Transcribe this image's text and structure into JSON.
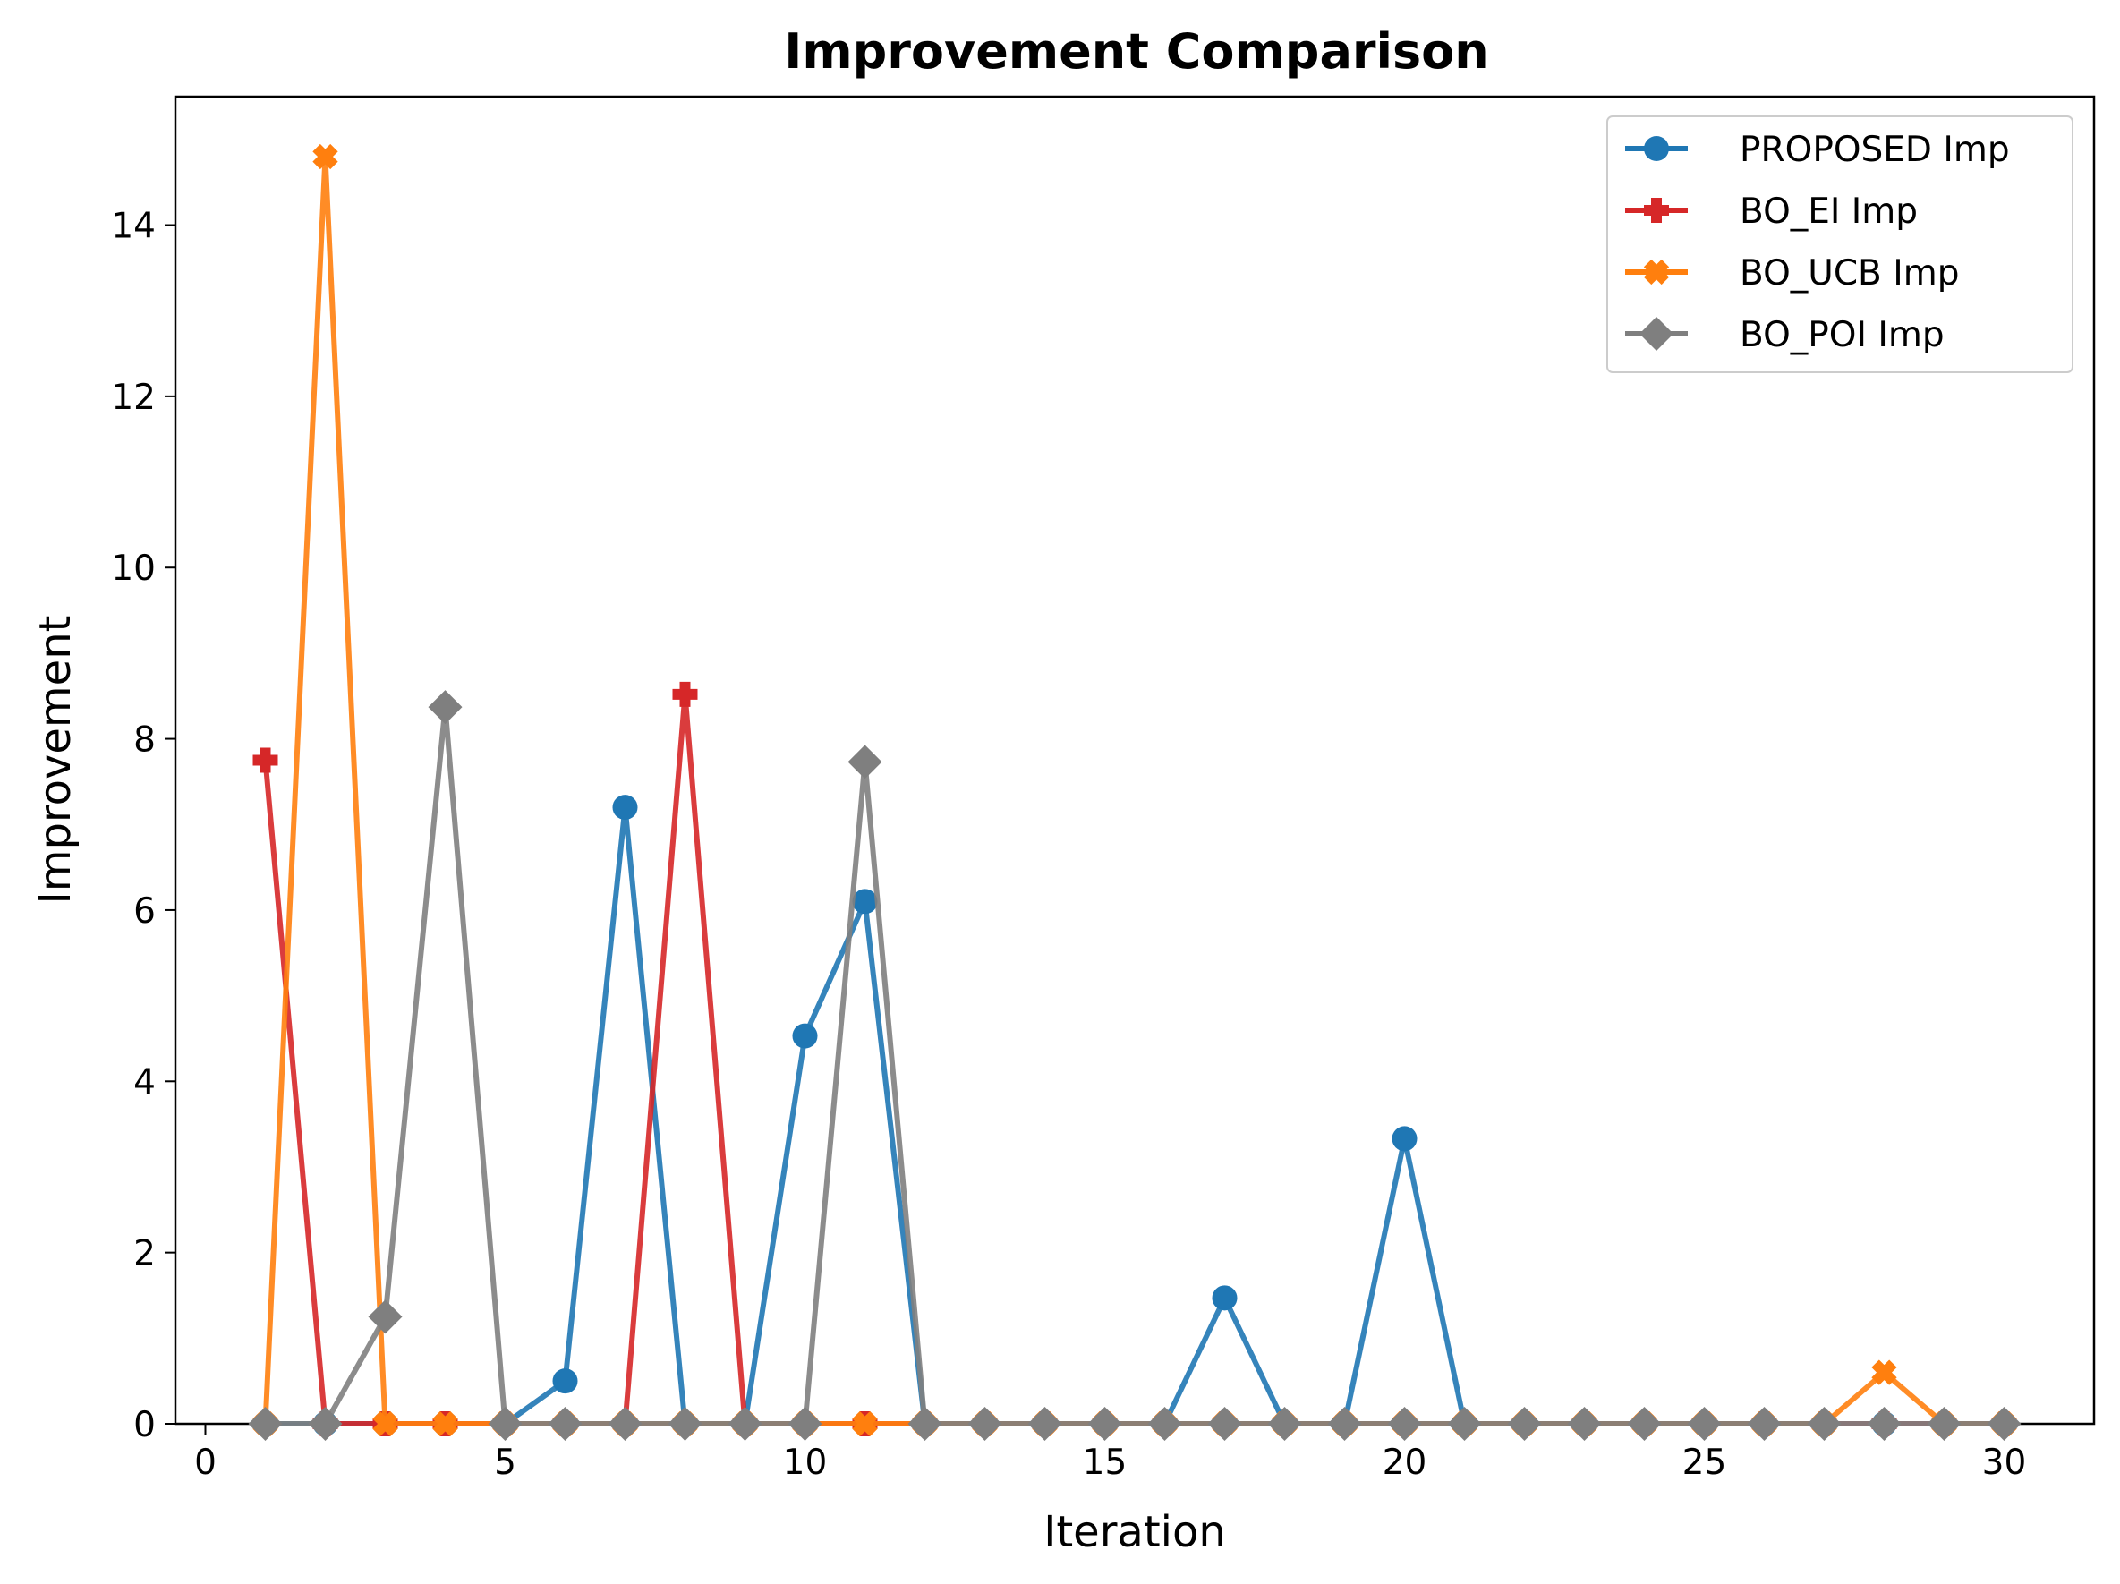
{
  "chart_data": {
    "type": "line",
    "title": "Improvement Comparison",
    "xlabel": "Iteration",
    "ylabel": "Improvement",
    "xlim": [
      -0.5,
      31.5
    ],
    "ylim": [
      0,
      15.5
    ],
    "x_ticks": [
      0,
      5,
      10,
      15,
      20,
      25,
      30
    ],
    "y_ticks": [
      0,
      2,
      4,
      6,
      8,
      10,
      12,
      14
    ],
    "grid": false,
    "legend_position": "top-right",
    "x": [
      1,
      2,
      3,
      4,
      5,
      6,
      7,
      8,
      9,
      10,
      11,
      12,
      13,
      14,
      15,
      16,
      17,
      18,
      19,
      20,
      21,
      22,
      23,
      24,
      25,
      26,
      27,
      28,
      29,
      30
    ],
    "series": [
      {
        "name": "PROPOSED Imp",
        "color": "#1f77b4",
        "marker": "circle",
        "values": [
          0,
          0,
          0,
          0,
          0,
          0.5,
          7.2,
          0,
          0,
          4.53,
          6.1,
          0,
          0,
          0,
          0,
          0,
          1.47,
          0,
          0,
          3.33,
          0,
          0,
          0,
          0,
          0,
          0,
          0,
          0,
          0,
          0
        ]
      },
      {
        "name": "BO_EI Imp",
        "color": "#d62728",
        "marker": "plus",
        "values": [
          7.75,
          0,
          0,
          0,
          0,
          0,
          0,
          8.52,
          0,
          0,
          0,
          0,
          0,
          0,
          0,
          0,
          0,
          0,
          0,
          0,
          0,
          0,
          0,
          0,
          0,
          0,
          0,
          0,
          0,
          0
        ]
      },
      {
        "name": "BO_UCB Imp",
        "color": "#ff7f0e",
        "marker": "x",
        "values": [
          0,
          14.8,
          0,
          0,
          0,
          0,
          0,
          0,
          0,
          0,
          0,
          0,
          0,
          0,
          0,
          0,
          0,
          0,
          0,
          0,
          0,
          0,
          0,
          0,
          0,
          0,
          0,
          0.6,
          0,
          0
        ]
      },
      {
        "name": "BO_POI Imp",
        "color": "#7f7f7f",
        "marker": "diamond",
        "values": [
          0,
          0,
          1.25,
          8.37,
          0,
          0,
          0,
          0,
          0,
          0,
          7.73,
          0,
          0,
          0,
          0,
          0,
          0,
          0,
          0,
          0,
          0,
          0,
          0,
          0,
          0,
          0,
          0,
          0,
          0,
          0
        ]
      }
    ]
  }
}
